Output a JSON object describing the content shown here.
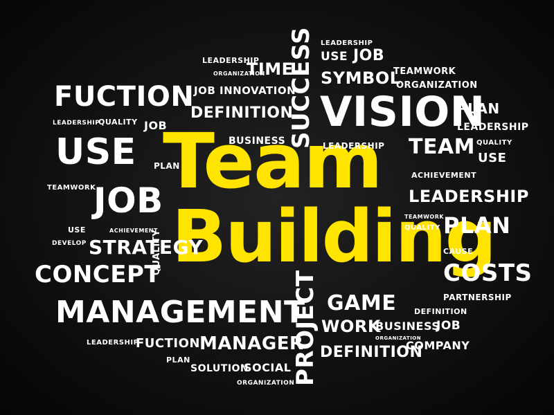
{
  "colors": {
    "background": "#0b0b0b",
    "primary_text": "#ffffff",
    "highlight": "#ffe400"
  },
  "title_words": [
    "Team",
    "Building"
  ],
  "words": [
    {
      "key": "leadership",
      "text": "LEADERSHIP"
    },
    {
      "key": "use",
      "text": "USE"
    },
    {
      "key": "job",
      "text": "JOB"
    },
    {
      "key": "symbol",
      "text": "SYMBOL"
    },
    {
      "key": "teamwork",
      "text": "TEAMWORK"
    },
    {
      "key": "organization",
      "text": "ORGANIZATION"
    },
    {
      "key": "time",
      "text": "TIME"
    },
    {
      "key": "success",
      "text": "SUCCESS"
    },
    {
      "key": "fuction",
      "text": "FUCTION"
    },
    {
      "key": "job_innovation",
      "text": "JOB INNOVATION"
    },
    {
      "key": "definition",
      "text": "DEFINITION"
    },
    {
      "key": "vision",
      "text": "VISION"
    },
    {
      "key": "plan",
      "text": "PLAN"
    },
    {
      "key": "quality",
      "text": "QUALITY"
    },
    {
      "key": "business",
      "text": "BUSINESS"
    },
    {
      "key": "team",
      "text": "TEAM"
    },
    {
      "key": "achievement",
      "text": "ACHIEVEMENT"
    },
    {
      "key": "develop",
      "text": "DEVELOP"
    },
    {
      "key": "cause",
      "text": "CAUSE"
    },
    {
      "key": "strategy",
      "text": "STRATEGY"
    },
    {
      "key": "concept",
      "text": "CONCEPT"
    },
    {
      "key": "costs",
      "text": "COSTS"
    },
    {
      "key": "partnership",
      "text": "PARTNERSHIP"
    },
    {
      "key": "management",
      "text": "MANAGEMENT"
    },
    {
      "key": "project",
      "text": "PROJECT"
    },
    {
      "key": "game",
      "text": "GAME"
    },
    {
      "key": "work",
      "text": "WORK"
    },
    {
      "key": "company",
      "text": "COMPANY"
    },
    {
      "key": "manager",
      "text": "MANAGER"
    },
    {
      "key": "solution",
      "text": "SOLUTION"
    },
    {
      "key": "social",
      "text": "SOCIAL"
    }
  ]
}
